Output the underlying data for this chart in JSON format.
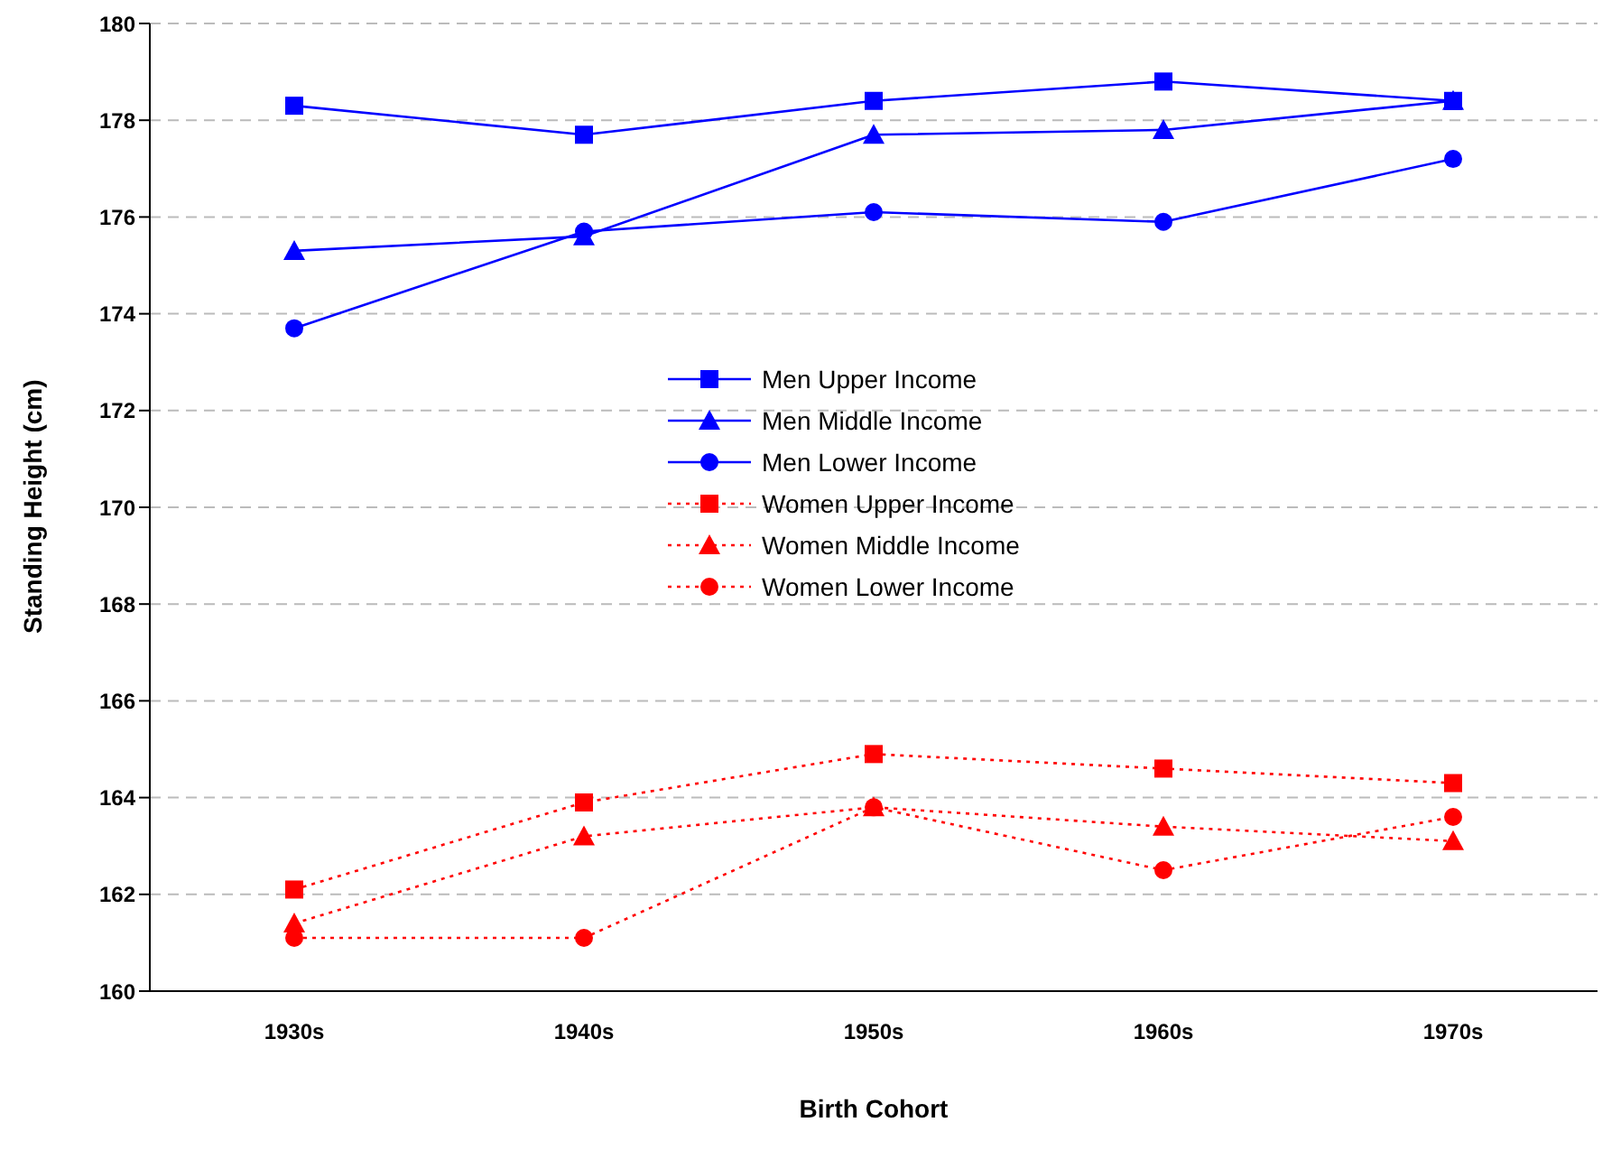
{
  "chart_data": {
    "type": "line",
    "xlabel": "Birth Cohort",
    "ylabel": "Standing Height (cm)",
    "categories": [
      "1930s",
      "1940s",
      "1950s",
      "1960s",
      "1970s"
    ],
    "series": [
      {
        "name": "Men Upper Income",
        "color": "#0000ff",
        "marker": "square",
        "line_style": "solid",
        "values": [
          178.3,
          177.7,
          178.4,
          178.8,
          178.4
        ]
      },
      {
        "name": "Men Middle Income",
        "color": "#0000ff",
        "marker": "triangle",
        "line_style": "solid",
        "values": [
          175.3,
          175.6,
          177.7,
          177.8,
          178.4
        ]
      },
      {
        "name": "Men Lower Income",
        "color": "#0000ff",
        "marker": "circle",
        "line_style": "solid",
        "values": [
          173.7,
          175.7,
          176.1,
          175.9,
          177.2
        ]
      },
      {
        "name": "Women Upper Income",
        "color": "#ff0000",
        "marker": "square",
        "line_style": "dotted",
        "values": [
          162.1,
          163.9,
          164.9,
          164.6,
          164.3
        ]
      },
      {
        "name": "Women Middle Income",
        "color": "#ff0000",
        "marker": "triangle",
        "line_style": "dotted",
        "values": [
          161.4,
          163.2,
          163.8,
          163.4,
          163.1
        ]
      },
      {
        "name": "Women Lower Income",
        "color": "#ff0000",
        "marker": "circle",
        "line_style": "dotted",
        "values": [
          161.1,
          161.1,
          163.8,
          162.5,
          163.6
        ]
      }
    ],
    "ylim": [
      160,
      180
    ],
    "yticks": [
      160,
      162,
      164,
      166,
      168,
      170,
      172,
      174,
      176,
      178,
      180
    ],
    "grid": "y",
    "legend": "center"
  }
}
